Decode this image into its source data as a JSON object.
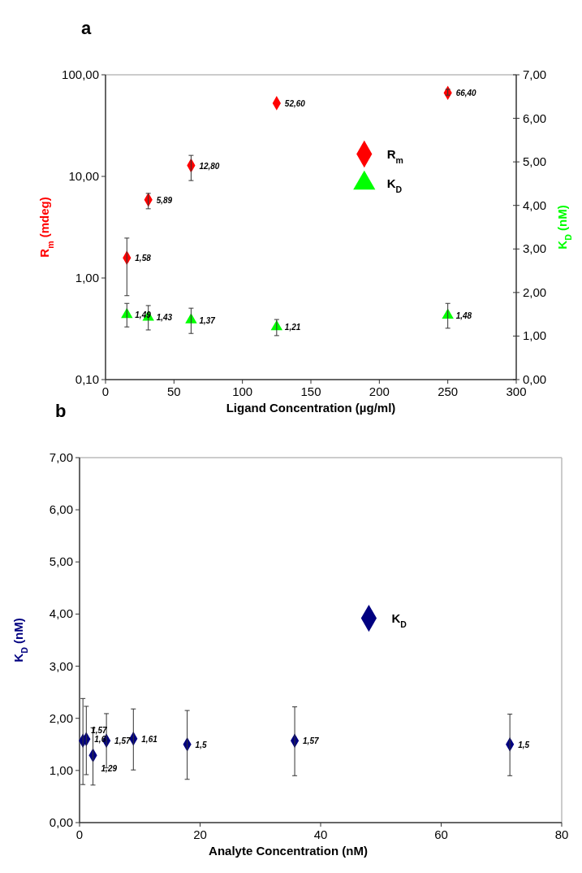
{
  "chart_data": [
    {
      "type": "scatter",
      "title": "a",
      "xlabel": "Ligand Concentration (µg/ml)",
      "ylabel": "R$_{m}$ (mdeg)",
      "y2label": "K$_{D}$ (nM)",
      "log": "y",
      "xlim": [
        0,
        300
      ],
      "xticks": [
        0,
        50,
        100,
        150,
        200,
        250,
        300
      ],
      "ylim": [
        0.1,
        100
      ],
      "yticks": [
        {
          "value": 0.1,
          "label": "0,10"
        },
        {
          "value": 1,
          "label": "1,00"
        },
        {
          "value": 10,
          "label": "10,00"
        },
        {
          "value": 100,
          "label": "100,00"
        }
      ],
      "y2lim": [
        0,
        7
      ],
      "y2ticks": [
        {
          "value": 0,
          "label": "0,00"
        },
        {
          "value": 1,
          "label": "1,00"
        },
        {
          "value": 2,
          "label": "2,00"
        },
        {
          "value": 3,
          "label": "3,00"
        },
        {
          "value": 4,
          "label": "4,00"
        },
        {
          "value": 5,
          "label": "5,00"
        },
        {
          "value": 6,
          "label": "6,00"
        },
        {
          "value": 7,
          "label": "7,00"
        }
      ],
      "grid": false,
      "legend": "right",
      "series": [
        {
          "name": "R$_{m}$",
          "color": "#ff0000",
          "marker": "diamond",
          "x": [
            15.6,
            31.25,
            62.5,
            125,
            250
          ],
          "values": [
            1.58,
            5.89,
            12.8,
            52.6,
            66.4
          ],
          "errors": [
            [
              0.67,
              2.47
            ],
            [
              4.8,
              6.8
            ],
            [
              9.1,
              16.1
            ],
            null,
            [
              63,
              72
            ]
          ],
          "value_labels": [
            "1,58",
            "5,89",
            "12,80",
            "52,60",
            "66,40"
          ]
        },
        {
          "name": "K$_{D}$",
          "color": "#00ff00",
          "marker": "triangle",
          "axis": "y2",
          "x": [
            15.6,
            31.25,
            62.5,
            125,
            250
          ],
          "values": [
            1.49,
            1.43,
            1.37,
            1.21,
            1.48
          ],
          "errors": [
            [
              1.21,
              1.75
            ],
            [
              1.14,
              1.7
            ],
            [
              1.06,
              1.64
            ],
            [
              1.01,
              1.38
            ],
            [
              1.18,
              1.75
            ]
          ],
          "value_labels": [
            "1,49",
            "1,43",
            "1,37",
            "1,21",
            "1,48"
          ]
        }
      ]
    },
    {
      "type": "scatter",
      "title": "b",
      "xlabel": "Analyte Concentration (nM)",
      "ylabel": "K$_{D}$ (nM)",
      "xlim": [
        0,
        80
      ],
      "xticks": [
        0,
        20,
        40,
        60,
        80
      ],
      "ylim": [
        0,
        7
      ],
      "yticks": [
        {
          "value": 0,
          "label": "0,00"
        },
        {
          "value": 1,
          "label": "1,00"
        },
        {
          "value": 2,
          "label": "2,00"
        },
        {
          "value": 3,
          "label": "3,00"
        },
        {
          "value": 4,
          "label": "4,00"
        },
        {
          "value": 5,
          "label": "5,00"
        },
        {
          "value": 6,
          "label": "6,00"
        },
        {
          "value": 7,
          "label": "7,00"
        }
      ],
      "grid": false,
      "legend": "top right",
      "series": [
        {
          "name": "K$_{D}$",
          "color": "#000080",
          "marker": "diamond",
          "x": [
            0.56,
            1.12,
            2.23,
            4.46,
            8.93,
            17.86,
            35.7,
            71.4
          ],
          "values": [
            1.57,
            1.6,
            1.29,
            1.57,
            1.61,
            1.5,
            1.57,
            1.5
          ],
          "errors": [
            [
              0.73,
              2.38
            ],
            [
              0.92,
              2.23
            ],
            [
              0.72,
              1.82
            ],
            [
              1.05,
              2.09
            ],
            [
              1.01,
              2.18
            ],
            [
              0.83,
              2.15
            ],
            [
              0.9,
              2.22
            ],
            [
              0.9,
              2.08
            ]
          ],
          "value_labels": [
            "1,57",
            "1,6",
            "1,29",
            "1,57",
            "1,61",
            "1,5",
            "1,57",
            "1,5"
          ]
        }
      ]
    }
  ]
}
